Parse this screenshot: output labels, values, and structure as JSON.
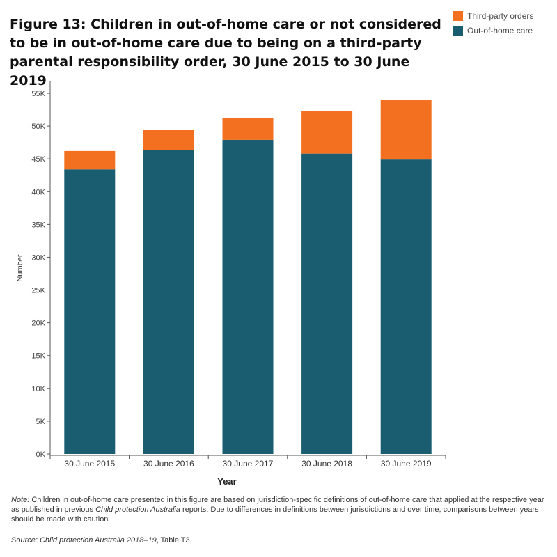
{
  "chart_data": {
    "type": "bar",
    "stacked": true,
    "title": "Figure 13: Children in out-of-home care or not considered to be in out-of-home care due to being on a third-party parental responsibility order, 30 June 2015 to 30 June 2019",
    "xlabel": "Year",
    "ylabel": "Number",
    "ylim": [
      0,
      55000
    ],
    "yticks": [
      0,
      5000,
      10000,
      15000,
      20000,
      25000,
      30000,
      35000,
      40000,
      45000,
      50000,
      55000
    ],
    "ytick_labels": [
      "0K",
      "5K",
      "10K",
      "15K",
      "20K",
      "25K",
      "30K",
      "35K",
      "40K",
      "45K",
      "50K",
      "55K"
    ],
    "categories": [
      "30 June 2015",
      "30 June 2016",
      "30 June 2017",
      "30 June 2018",
      "30 June 2019"
    ],
    "series": [
      {
        "name": "Out-of-home care",
        "color": "#1a5c70",
        "values": [
          43400,
          46400,
          47900,
          45800,
          44900
        ]
      },
      {
        "name": "Third-party orders",
        "color": "#f37021",
        "values": [
          2800,
          3000,
          3300,
          6500,
          9100
        ]
      }
    ],
    "legend_position": "top-right",
    "grid": false
  },
  "note": {
    "label": "Note:",
    "text_before": " Children in out-of-home care presented in this figure are based on jurisdiction-specific definitions of out-of-home care that applied at the respective year as published in previous ",
    "publication": "Child protection Australia",
    "text_after": " reports. Due to differences in definitions between jurisdictions and over time, comparisons between years should be made with caution."
  },
  "source": {
    "label": "Source: Child protection Australia 2018–19",
    "table": ", Table T3."
  }
}
